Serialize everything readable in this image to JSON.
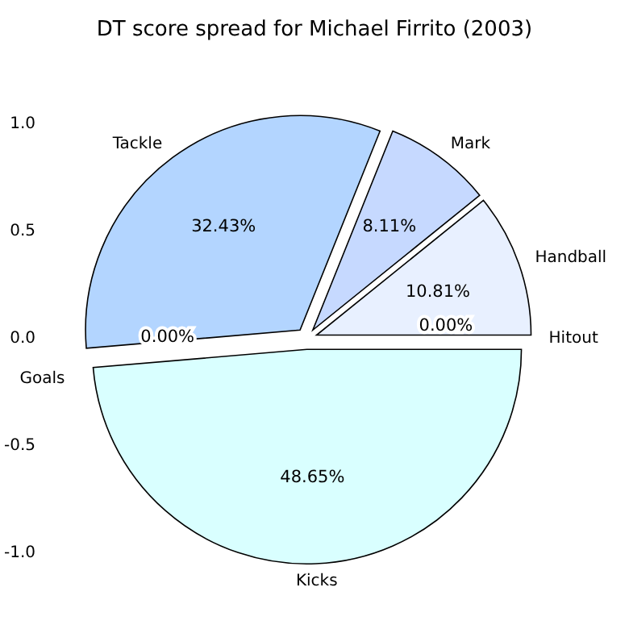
{
  "chart_data": {
    "type": "pie",
    "title": "DT score spread for Michael Firrito (2003)",
    "categories": [
      "Hitout",
      "Handball",
      "Mark",
      "Tackle",
      "Goals",
      "Kicks"
    ],
    "values": [
      0,
      10.81,
      8.11,
      32.43,
      0,
      48.65
    ],
    "value_labels": [
      "0.00%",
      "10.81%",
      "8.11%",
      "32.43%",
      "0.00%",
      "48.65%"
    ],
    "colors": [
      null,
      "#e8f0ff",
      "#c6d9ff",
      "#b3d5ff",
      null,
      "#d9ffff"
    ],
    "annotations": [
      "1.0",
      "0.5",
      "0.0",
      "-0.5",
      "-1.0"
    ]
  }
}
